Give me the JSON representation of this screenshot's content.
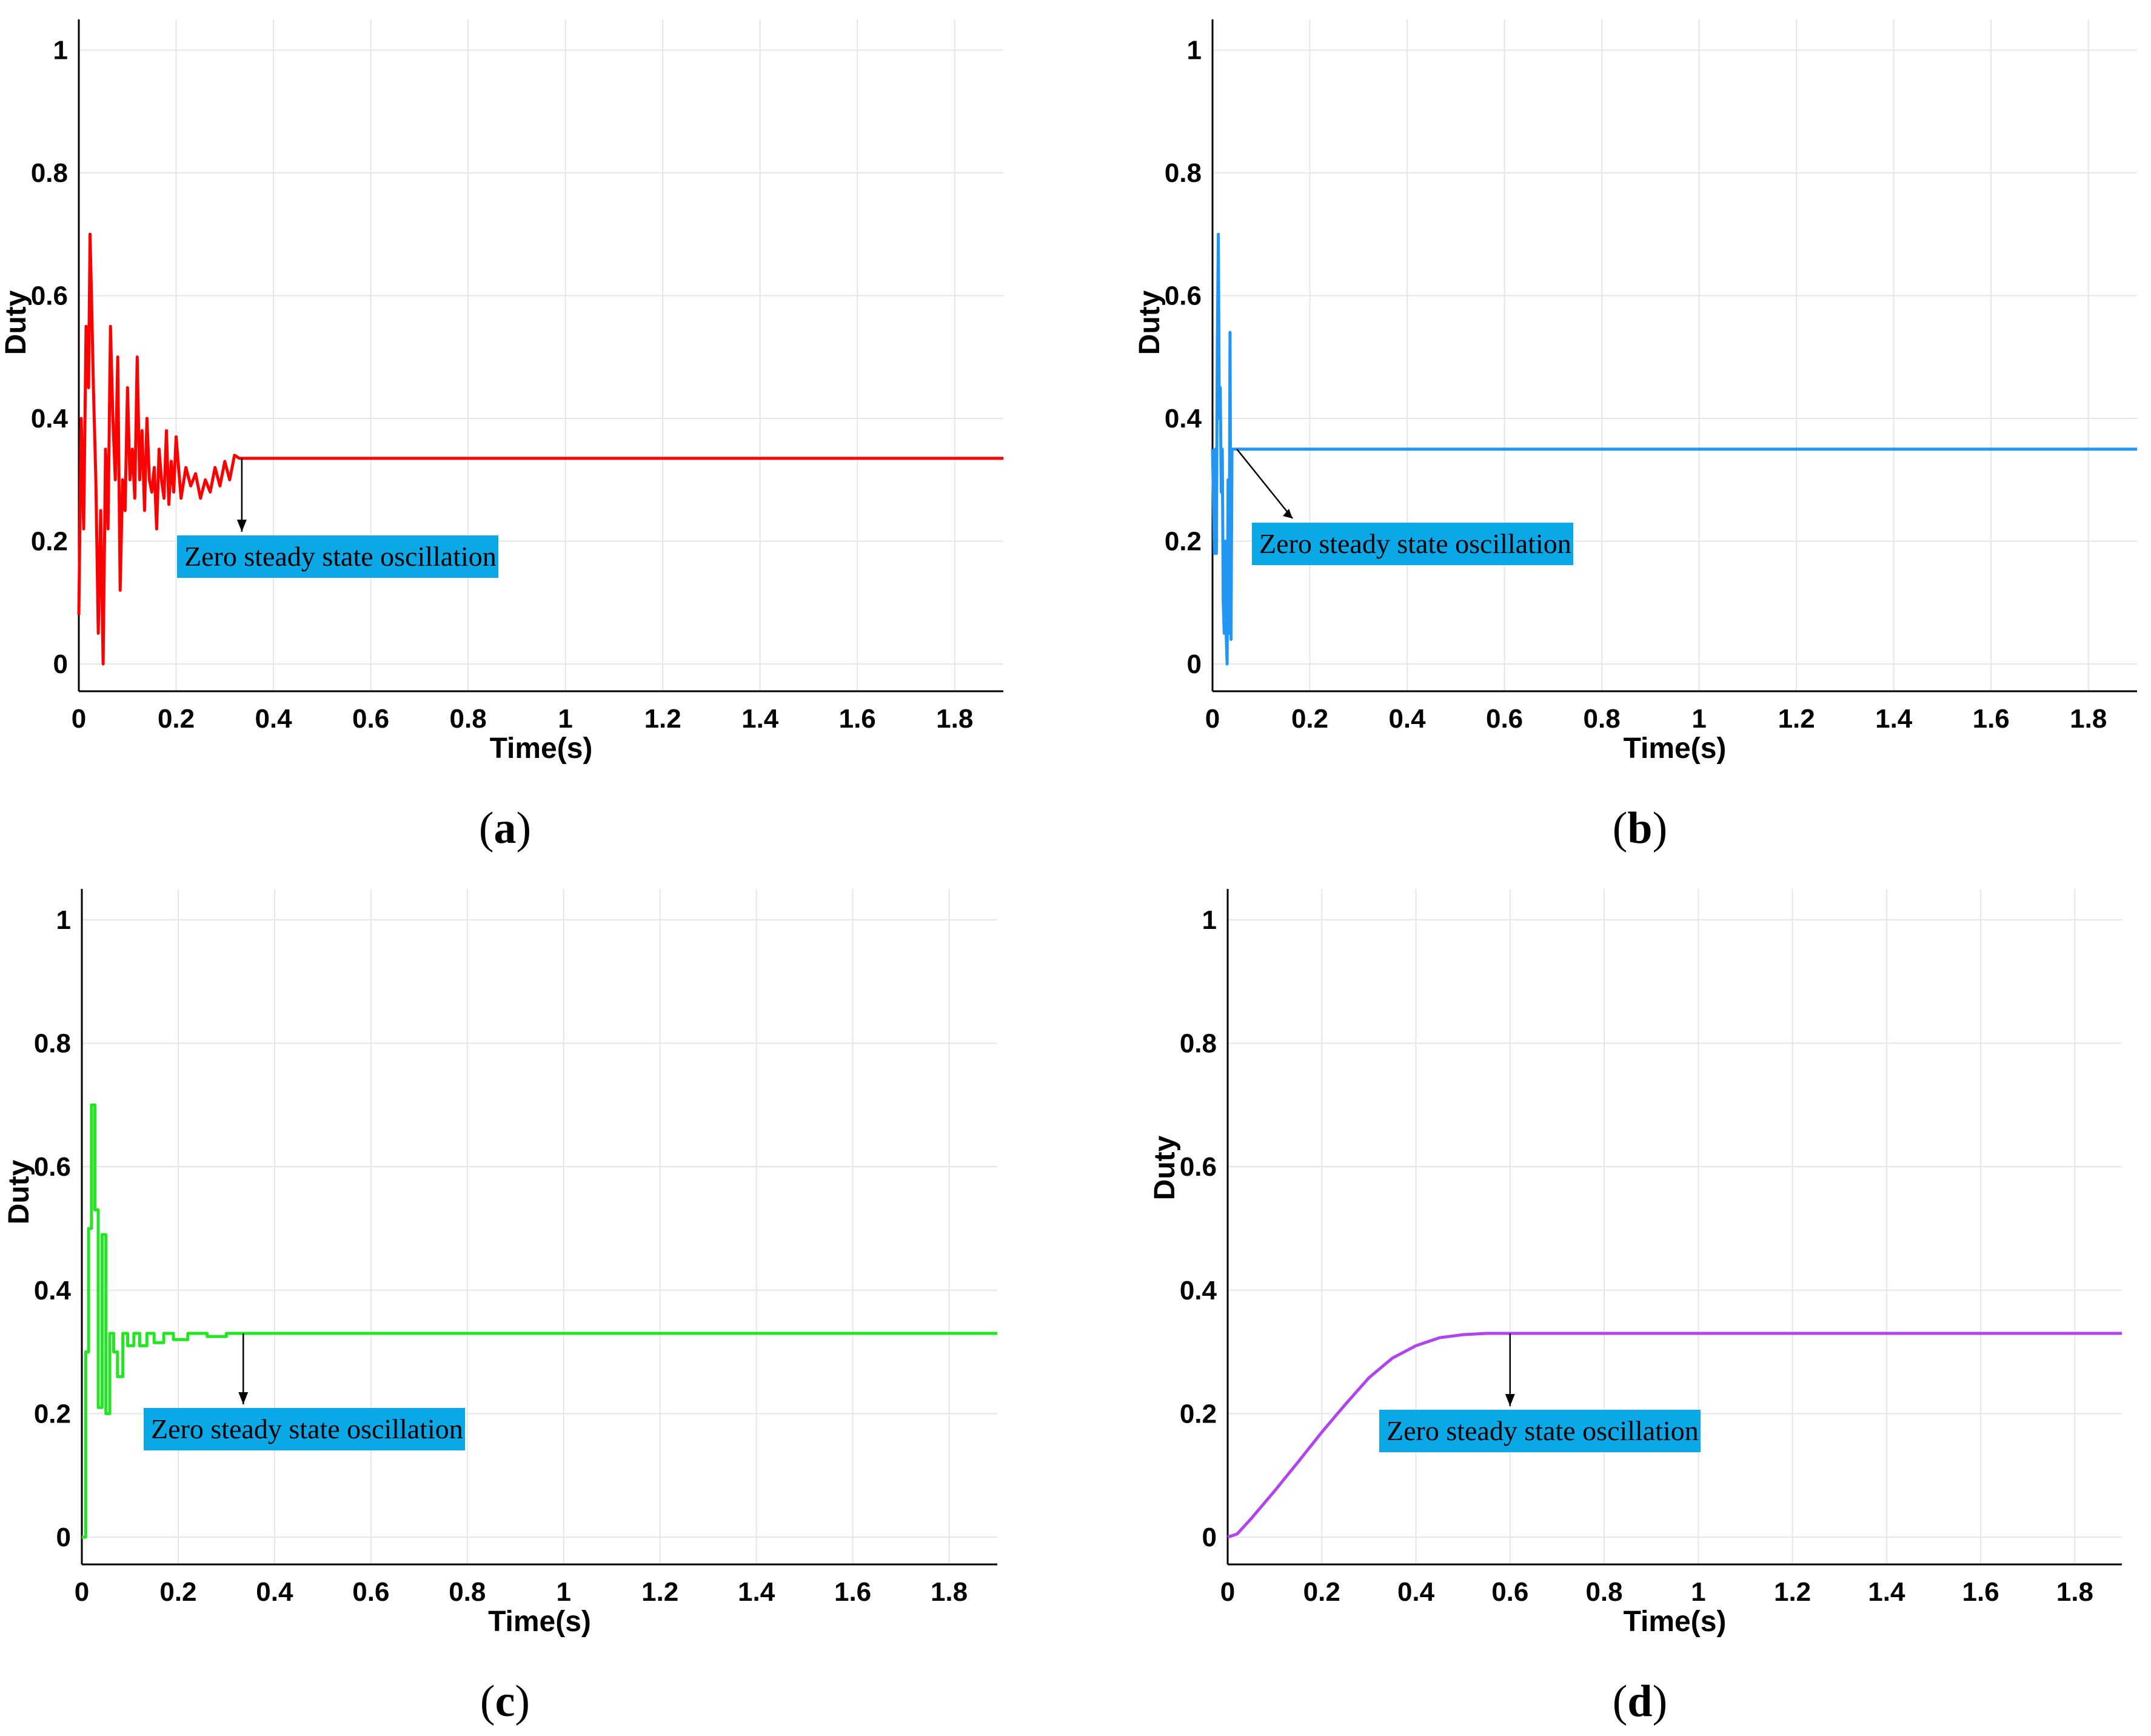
{
  "chart_data": [
    {
      "type": "line",
      "panel": "(a)",
      "caption_letter": "a",
      "xlabel": "Time(s)",
      "ylabel": "Duty",
      "xlim": [
        0,
        1.9
      ],
      "ylim": [
        0,
        1.05
      ],
      "xticks": [
        0,
        0.2,
        0.4,
        0.6,
        0.8,
        1,
        1.2,
        1.4,
        1.6,
        1.8
      ],
      "yticks": [
        0,
        0.2,
        0.4,
        0.6,
        0.8,
        1
      ],
      "grid": true,
      "color": "#ff0000",
      "series": [
        {
          "name": "Duty",
          "x": [
            0,
            0.005,
            0.01,
            0.015,
            0.02,
            0.023,
            0.026,
            0.03,
            0.035,
            0.04,
            0.045,
            0.05,
            0.055,
            0.06,
            0.065,
            0.07,
            0.075,
            0.08,
            0.085,
            0.09,
            0.095,
            0.1,
            0.105,
            0.11,
            0.115,
            0.12,
            0.125,
            0.13,
            0.135,
            0.14,
            0.145,
            0.15,
            0.155,
            0.16,
            0.165,
            0.17,
            0.175,
            0.18,
            0.185,
            0.19,
            0.195,
            0.2,
            0.21,
            0.22,
            0.23,
            0.24,
            0.25,
            0.26,
            0.27,
            0.28,
            0.29,
            0.3,
            0.31,
            0.32,
            0.33,
            1.9
          ],
          "y": [
            0.08,
            0.4,
            0.22,
            0.55,
            0.45,
            0.7,
            0.6,
            0.45,
            0.3,
            0.05,
            0.25,
            0.0,
            0.35,
            0.22,
            0.55,
            0.4,
            0.3,
            0.5,
            0.12,
            0.3,
            0.25,
            0.45,
            0.3,
            0.35,
            0.27,
            0.5,
            0.3,
            0.38,
            0.25,
            0.4,
            0.3,
            0.28,
            0.32,
            0.22,
            0.35,
            0.3,
            0.27,
            0.38,
            0.26,
            0.33,
            0.28,
            0.37,
            0.27,
            0.32,
            0.29,
            0.31,
            0.27,
            0.3,
            0.28,
            0.32,
            0.29,
            0.33,
            0.3,
            0.34,
            0.335,
            0.335
          ]
        }
      ],
      "annotation": {
        "text": "Zero  steady state oscillation",
        "x": 0.335,
        "y": 0.335,
        "box_color": "#0aa8e6"
      }
    },
    {
      "type": "line",
      "panel": "(b)",
      "caption_letter": "b",
      "xlabel": "Time(s)",
      "ylabel": "Duty",
      "xlim": [
        0,
        1.9
      ],
      "ylim": [
        0,
        1.05
      ],
      "xticks": [
        0,
        0.2,
        0.4,
        0.6,
        0.8,
        1,
        1.2,
        1.4,
        1.6,
        1.8
      ],
      "yticks": [
        0,
        0.2,
        0.4,
        0.6,
        0.8,
        1
      ],
      "grid": true,
      "color": "#2196f3",
      "series": [
        {
          "name": "Duty",
          "x": [
            0,
            0.004,
            0.006,
            0.008,
            0.01,
            0.012,
            0.014,
            0.016,
            0.018,
            0.02,
            0.022,
            0.024,
            0.026,
            0.028,
            0.03,
            0.032,
            0.034,
            0.036,
            0.038,
            0.04,
            0.042,
            0.045,
            1.9
          ],
          "y": [
            0.35,
            0.18,
            0.35,
            0.18,
            0.52,
            0.7,
            0.4,
            0.45,
            0.28,
            0.35,
            0.1,
            0.05,
            0.2,
            0.05,
            0.0,
            0.3,
            0.05,
            0.54,
            0.04,
            0.35,
            0.35,
            0.35,
            0.35
          ]
        }
      ],
      "annotation": {
        "text": "Zero  steady state oscillation",
        "x": 0.05,
        "y": 0.35,
        "box_color": "#0aa8e6"
      }
    },
    {
      "type": "line",
      "panel": "(c)",
      "caption_letter": "c",
      "xlabel": "Time(s)",
      "ylabel": "Duty",
      "xlim": [
        0,
        1.9
      ],
      "ylim": [
        0,
        1.05
      ],
      "xticks": [
        0,
        0.2,
        0.4,
        0.6,
        0.8,
        1,
        1.2,
        1.4,
        1.6,
        1.8
      ],
      "yticks": [
        0,
        0.2,
        0.4,
        0.6,
        0.8,
        1
      ],
      "grid": true,
      "color": "#21e621",
      "series": [
        {
          "name": "Duty",
          "x": [
            0,
            0.008,
            0.008,
            0.014,
            0.014,
            0.02,
            0.02,
            0.027,
            0.027,
            0.034,
            0.034,
            0.042,
            0.042,
            0.05,
            0.05,
            0.058,
            0.058,
            0.066,
            0.066,
            0.074,
            0.074,
            0.085,
            0.085,
            0.095,
            0.095,
            0.108,
            0.108,
            0.12,
            0.12,
            0.135,
            0.135,
            0.15,
            0.15,
            0.17,
            0.17,
            0.19,
            0.19,
            0.22,
            0.22,
            0.26,
            0.26,
            0.3,
            0.3,
            1.9
          ],
          "y": [
            0.0,
            0.0,
            0.3,
            0.3,
            0.5,
            0.5,
            0.7,
            0.7,
            0.53,
            0.53,
            0.21,
            0.21,
            0.49,
            0.49,
            0.2,
            0.2,
            0.33,
            0.33,
            0.3,
            0.3,
            0.26,
            0.26,
            0.33,
            0.33,
            0.31,
            0.31,
            0.33,
            0.33,
            0.31,
            0.31,
            0.33,
            0.33,
            0.315,
            0.315,
            0.33,
            0.33,
            0.32,
            0.32,
            0.33,
            0.33,
            0.325,
            0.325,
            0.33,
            0.33
          ]
        }
      ],
      "annotation": {
        "text": "Zero  steady state oscillation",
        "x": 0.335,
        "y": 0.33,
        "box_color": "#0aa8e6"
      }
    },
    {
      "type": "line",
      "panel": "(d)",
      "caption_letter": "d",
      "xlabel": "Time(s)",
      "ylabel": "Duty",
      "xlim": [
        0,
        1.9
      ],
      "ylim": [
        0,
        1.05
      ],
      "xticks": [
        0,
        0.2,
        0.4,
        0.6,
        0.8,
        1,
        1.2,
        1.4,
        1.6,
        1.8
      ],
      "yticks": [
        0,
        0.2,
        0.4,
        0.6,
        0.8,
        1
      ],
      "grid": true,
      "color": "#b045f0",
      "series": [
        {
          "name": "Duty",
          "x": [
            0,
            0.02,
            0.05,
            0.1,
            0.15,
            0.2,
            0.25,
            0.3,
            0.35,
            0.4,
            0.45,
            0.5,
            0.55,
            0.6,
            1.9
          ],
          "y": [
            0,
            0.005,
            0.03,
            0.075,
            0.122,
            0.17,
            0.215,
            0.258,
            0.29,
            0.31,
            0.323,
            0.328,
            0.33,
            0.33,
            0.33
          ]
        }
      ],
      "annotation": {
        "text": "Zero  steady state oscillation",
        "x": 0.6,
        "y": 0.33,
        "box_color": "#0aa8e6"
      }
    }
  ]
}
